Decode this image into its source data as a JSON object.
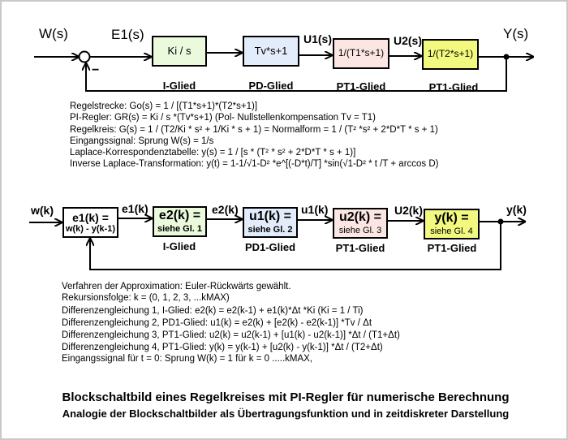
{
  "continuous": {
    "signals": {
      "w": "W(s)",
      "e1": "E1(s)",
      "u1": "U1(s)",
      "u2": "U2(s)",
      "y": "Y(s)",
      "minus": "−"
    },
    "blocks": [
      {
        "text": "Ki / s",
        "label": "I-Glied",
        "color": "#ebf9dc"
      },
      {
        "text": "Tv*s+1",
        "label": "PD-Glied",
        "color": "#e3ecfb"
      },
      {
        "text": "1/(T1*s+1)",
        "label": "PT1-Glied",
        "color": "#fbe6e3"
      },
      {
        "text": "1/(T2*s+1)",
        "label": "PT1-Glied",
        "color": "#f2f97e"
      }
    ],
    "equations": [
      "Regelstrecke:   Go(s) = 1 / [(T1*s+1)*(T2*s+1)]",
      "PI-Regler:         GR(s) = Ki / s *(Tv*s+1)          (Pol- Nullstellenkompensation  Tv = T1)",
      "Regelkreis:        G(s)   = 1 / (T2/Ki * s² + 1/Ki * s + 1) = Normalform = 1 / (T² *s² + 2*D*T * s + 1)",
      "Eingangssignal:  Sprung W(s) = 1/s",
      "Laplace-Korrespondenztabelle:   y(s) = 1 / [s * (T² * s² + 2*D*T * s + 1)]",
      "Inverse Laplace-Transformation:  y(t)  = 1-1/√1-D² *e^[(-D*t)/T] *sin(√1-D²  * t /T + arccos D)"
    ]
  },
  "discrete": {
    "signals": {
      "w": "w(k)",
      "e1": "e1(k)",
      "e2": "e2(k)",
      "u1": "u1(k)",
      "u2": "U2(k)",
      "y": "y(k)"
    },
    "blocks": [
      {
        "text": "e1(k) =",
        "sub": "w(k) - y(k-1)",
        "label": "",
        "color": "#ffffff"
      },
      {
        "text": "e2(k) =",
        "sub": "siehe Gl. 1",
        "label": "I-Glied",
        "color": "#ebf9dc"
      },
      {
        "text": "u1(k) =",
        "sub": "siehe Gl. 2",
        "label": "PD1-Glied",
        "color": "#e3ecfb"
      },
      {
        "text": "u2(k) =",
        "sub": "siehe Gl. 3",
        "label": "PT1-Glied",
        "color": "#fbe6e3"
      },
      {
        "text": "y(k) =",
        "sub": "siehe Gl. 4",
        "label": "PT1-Glied",
        "color": "#f2f97e"
      }
    ],
    "equations": [
      "Verfahren der Approximation:  Euler-Rückwärts  gewählt.",
      "Rekursionsfolge:  k = (0, 1,  2,  3, ...kMAX)",
      "Differenzengleichung 1,  I-Glied:         e2(k) = e2(k-1) + e1(k)*Δt *Ki      (Ki = 1 / Ti)",
      "Differenzengleichung 2,  PD1-Glied:   u1(k) = e2(k) + [e2(k) - e2(k-1)] *Tv / Δt",
      "Differenzengleichung 3,  PT1-Glied:  u2(k) = u2(k-1) + [u1(k) - u2(k-1)] *Δt / (T1+Δt)",
      "Differenzengleichung 4,  PT1-Glied:    y(k) = y(k-1) + [u2(k) - y(k-1)] *Δt / (T2+Δt)",
      "Eingangssignal für t = 0:  Sprung W(k)  = 1 für k = 0 .....kMAX,"
    ]
  },
  "title": "Blockschaltbild eines Regelkreises mit PI-Regler für numerische Berechnung",
  "subtitle": "Analogie der Blockschaltbilder als Übertragungsfunktion und in zeitdiskreter Darstellung"
}
